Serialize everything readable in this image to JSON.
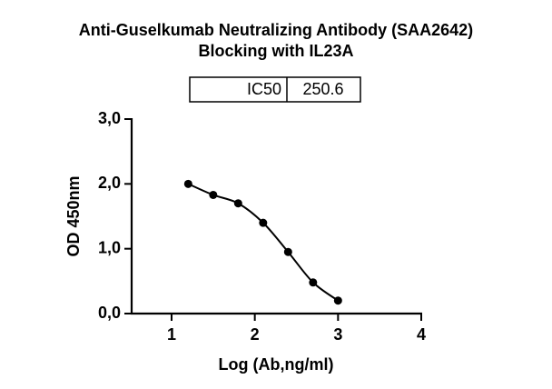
{
  "chart_data": {
    "type": "scatter",
    "title": [
      "Anti-Guselkumab Neutralizing Antibody (SAA2642)",
      "Blocking with IL23A"
    ],
    "x_label": "Log (Ab,ng/ml)",
    "y_label": "OD 450nm",
    "x": [
      1.2,
      1.5,
      1.8,
      2.1,
      2.4,
      2.7,
      3.0
    ],
    "series": [
      {
        "color": "#000000",
        "values": [
          2.0,
          1.83,
          1.7,
          1.4,
          0.95,
          0.48,
          0.2
        ]
      }
    ],
    "xlim": [
      0.52,
      4
    ],
    "xticks": [
      1,
      2,
      3,
      4
    ],
    "ylim": [
      0,
      3
    ],
    "yticks": [
      {
        "value": 0,
        "label": "0,0"
      },
      {
        "value": 1,
        "label": "1,0"
      },
      {
        "value": 2,
        "label": "2,0"
      },
      {
        "value": 3,
        "label": "3,0"
      }
    ],
    "fit_curve": true,
    "annotation_table": {
      "header": "IC50",
      "value": 250.6
    }
  }
}
